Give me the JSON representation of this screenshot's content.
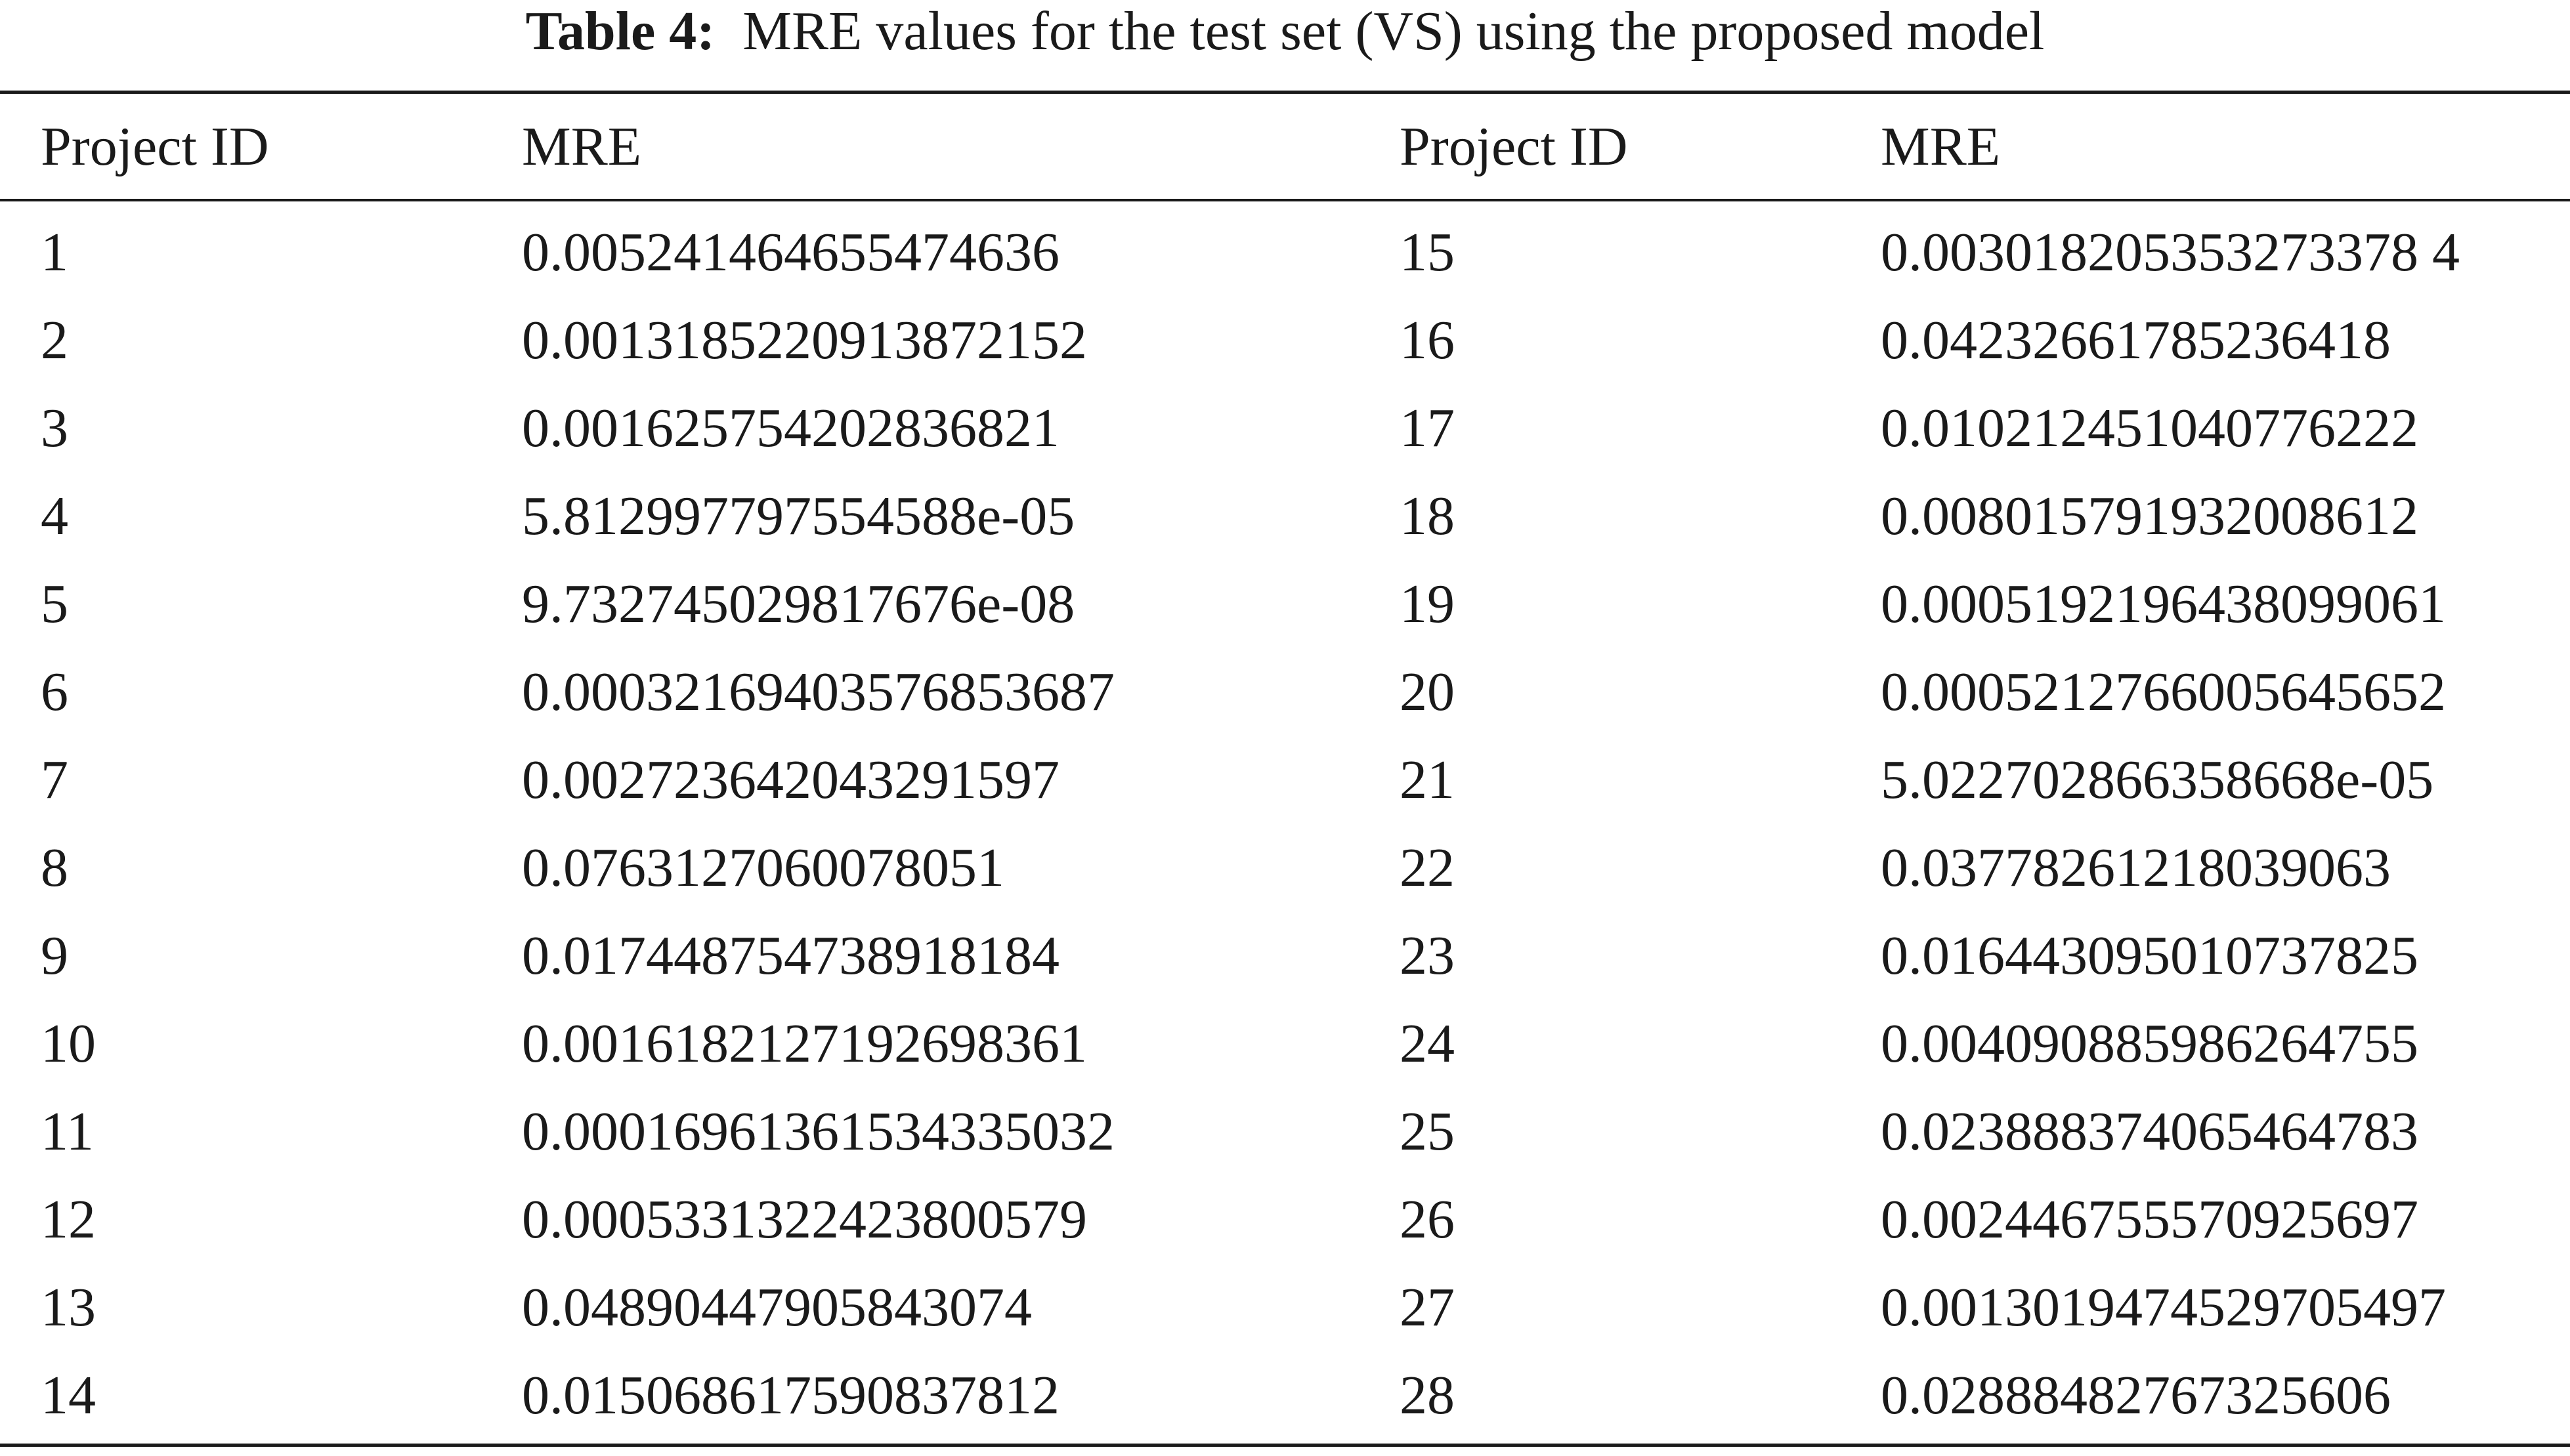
{
  "caption": {
    "label": "Table 4:",
    "text": "MRE values for the test set (VS) using the proposed model"
  },
  "columns": [
    "Project ID",
    "MRE",
    "Project ID",
    "MRE"
  ],
  "rows": [
    {
      "id_left": "1",
      "mre_left": "0.005241464655474636",
      "id_right": "15",
      "mre_right": "0.003018205353273378 4"
    },
    {
      "id_left": "2",
      "mre_left": "0.0013185220913872152",
      "id_right": "16",
      "mre_right": "0.04232661785236418"
    },
    {
      "id_left": "3",
      "mre_left": "0.001625754202836821",
      "id_right": "17",
      "mre_right": "0.010212451040776222"
    },
    {
      "id_left": "4",
      "mre_left": "5.812997797554588e-05",
      "id_right": "18",
      "mre_right": "0.008015791932008612"
    },
    {
      "id_left": "5",
      "mre_left": "9.732745029817676e-08",
      "id_right": "19",
      "mre_right": "0.0005192196438099061"
    },
    {
      "id_left": "6",
      "mre_left": "0.00032169403576853687",
      "id_right": "20",
      "mre_right": "0.0005212766005645652"
    },
    {
      "id_left": "7",
      "mre_left": "0.002723642043291597",
      "id_right": "21",
      "mre_right": "5.022702866358668e-05"
    },
    {
      "id_left": "8",
      "mre_left": "0.0763127060078051",
      "id_right": "22",
      "mre_right": "0.03778261218039063"
    },
    {
      "id_left": "9",
      "mre_left": "0.017448754738918184",
      "id_right": "23",
      "mre_right": "0.016443095010737825"
    },
    {
      "id_left": "10",
      "mre_left": "0.0016182127192698361",
      "id_right": "24",
      "mre_right": "0.004090885986264755"
    },
    {
      "id_left": "11",
      "mre_left": "0.00016961361534335032",
      "id_right": "25",
      "mre_right": "0.023888374065464783"
    },
    {
      "id_left": "12",
      "mre_left": "0.0005331322423800579",
      "id_right": "26",
      "mre_right": "0.002446755570925697"
    },
    {
      "id_left": "13",
      "mre_left": "0.04890447905843074",
      "id_right": "27",
      "mre_right": "0.0013019474529705497"
    },
    {
      "id_left": "14",
      "mre_left": "0.015068617590837812",
      "id_right": "28",
      "mre_right": "0.02888482767325606"
    }
  ]
}
